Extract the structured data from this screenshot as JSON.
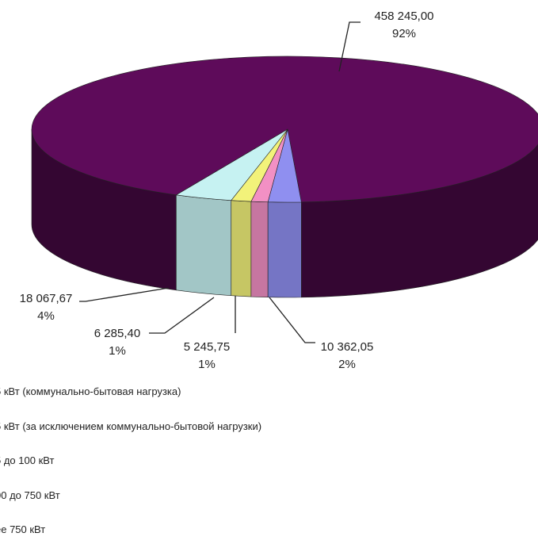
{
  "chart_data": {
    "type": "pie",
    "title": "",
    "slices": [
      {
        "value": 458245.0,
        "value_label": "458 245,00",
        "percent_label": "92%",
        "color": "#5e0b5a"
      },
      {
        "value": 10362.05,
        "value_label": "10 362,05",
        "percent_label": "2%",
        "color": "#8f8ff0"
      },
      {
        "value": 5245.75,
        "value_label": "5 245,75",
        "percent_label": "1%",
        "color": "#f290c4"
      },
      {
        "value": 6285.4,
        "value_label": "6 285,40",
        "percent_label": "1%",
        "color": "#f2f27a"
      },
      {
        "value": 18067.67,
        "value_label": "18 067,67",
        "percent_label": "4%",
        "color": "#c6f2f2"
      }
    ],
    "legend": [
      "5 кВт (коммунально-бытовая  нагрузка)",
      "5 кВт (за исключением  коммунально-бытовой  нагрузки)",
      "5 до 100  кВт",
      "00 до 750  кВт",
      "ее 750 кВт"
    ],
    "legend_placement": "bottom"
  }
}
